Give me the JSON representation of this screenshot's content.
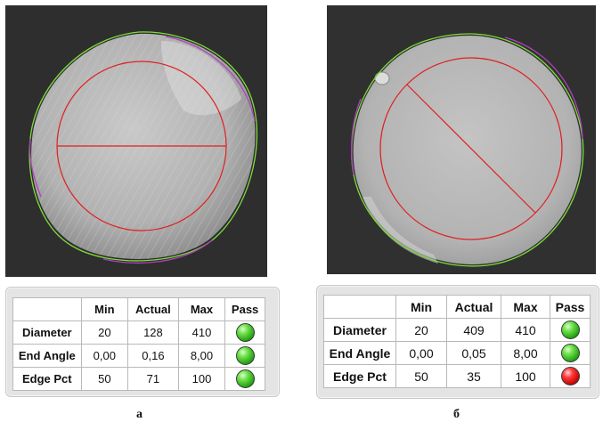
{
  "panels": [
    {
      "caption": "а",
      "table": {
        "headers": [
          "",
          "Min",
          "Actual",
          "Max",
          "Pass"
        ],
        "rows": [
          {
            "label": "Diameter",
            "min": "20",
            "actual": "128",
            "max": "410",
            "pass": true
          },
          {
            "label": "End Angle",
            "min": "0,00",
            "actual": "0,16",
            "max": "8,00",
            "pass": true
          },
          {
            "label": "Edge Pct",
            "min": "50",
            "actual": "71",
            "max": "100",
            "pass": true
          }
        ]
      }
    },
    {
      "caption": "б",
      "table": {
        "headers": [
          "",
          "Min",
          "Actual",
          "Max",
          "Pass"
        ],
        "rows": [
          {
            "label": "Diameter",
            "min": "20",
            "actual": "409",
            "max": "410",
            "pass": true
          },
          {
            "label": "End Angle",
            "min": "0,00",
            "actual": "0,05",
            "max": "8,00",
            "pass": true
          },
          {
            "label": "Edge Pct",
            "min": "50",
            "actual": "35",
            "max": "100",
            "pass": false
          }
        ]
      }
    }
  ],
  "colors": {
    "pass_led": "#3fcf22",
    "fail_led": "#e01010",
    "fit_circle": "#e02020",
    "edge_green": "#7ddc3a",
    "edge_magenta": "#b040c0"
  }
}
